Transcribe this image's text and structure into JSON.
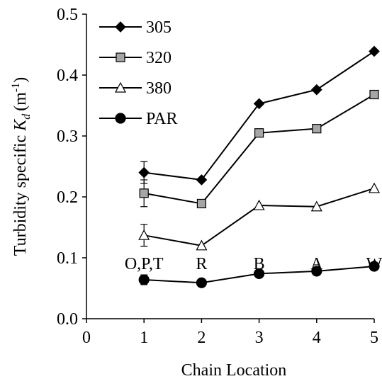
{
  "chart_data": {
    "type": "line",
    "xlabel": "Chain Location",
    "ylabel": {
      "text": "Turbidity specific ",
      "symbol": "K",
      "subscript": "d",
      "unit": "(m",
      "unit_exponent": "-1",
      "unit_close": ")"
    },
    "x": [
      1,
      2,
      3,
      4,
      5
    ],
    "point_labels": [
      "O,P,T",
      "R",
      "B",
      "A",
      "W"
    ],
    "series": [
      {
        "name": "305",
        "marker": "diamond",
        "color": "#000000",
        "values": [
          0.24,
          0.228,
          0.353,
          0.376,
          0.439
        ],
        "errors": [
          0.018,
          null,
          null,
          null,
          null
        ]
      },
      {
        "name": "320",
        "marker": "square",
        "color": "#a6a6a6",
        "values": [
          0.206,
          0.189,
          0.305,
          0.312,
          0.368
        ],
        "errors": [
          0.022,
          null,
          null,
          null,
          null
        ]
      },
      {
        "name": "380",
        "marker": "triangle",
        "color": "#ffffff",
        "values": [
          0.137,
          0.12,
          0.186,
          0.184,
          0.214
        ],
        "errors": [
          0.018,
          null,
          null,
          null,
          null
        ]
      },
      {
        "name": "PAR",
        "marker": "circle",
        "color": "#000000",
        "values": [
          0.064,
          0.059,
          0.074,
          0.078,
          0.086
        ],
        "errors": [
          0.008,
          null,
          null,
          null,
          null
        ]
      }
    ],
    "xlim": [
      0,
      5
    ],
    "xticks": [
      0,
      1,
      2,
      3,
      4,
      5
    ],
    "ylim": [
      0,
      0.5
    ],
    "yticks": [
      {
        "value": 0,
        "label": "0.0"
      },
      0.1,
      0.2,
      0.3,
      0.4,
      0.5
    ],
    "legend": "top-left",
    "grid": false
  }
}
